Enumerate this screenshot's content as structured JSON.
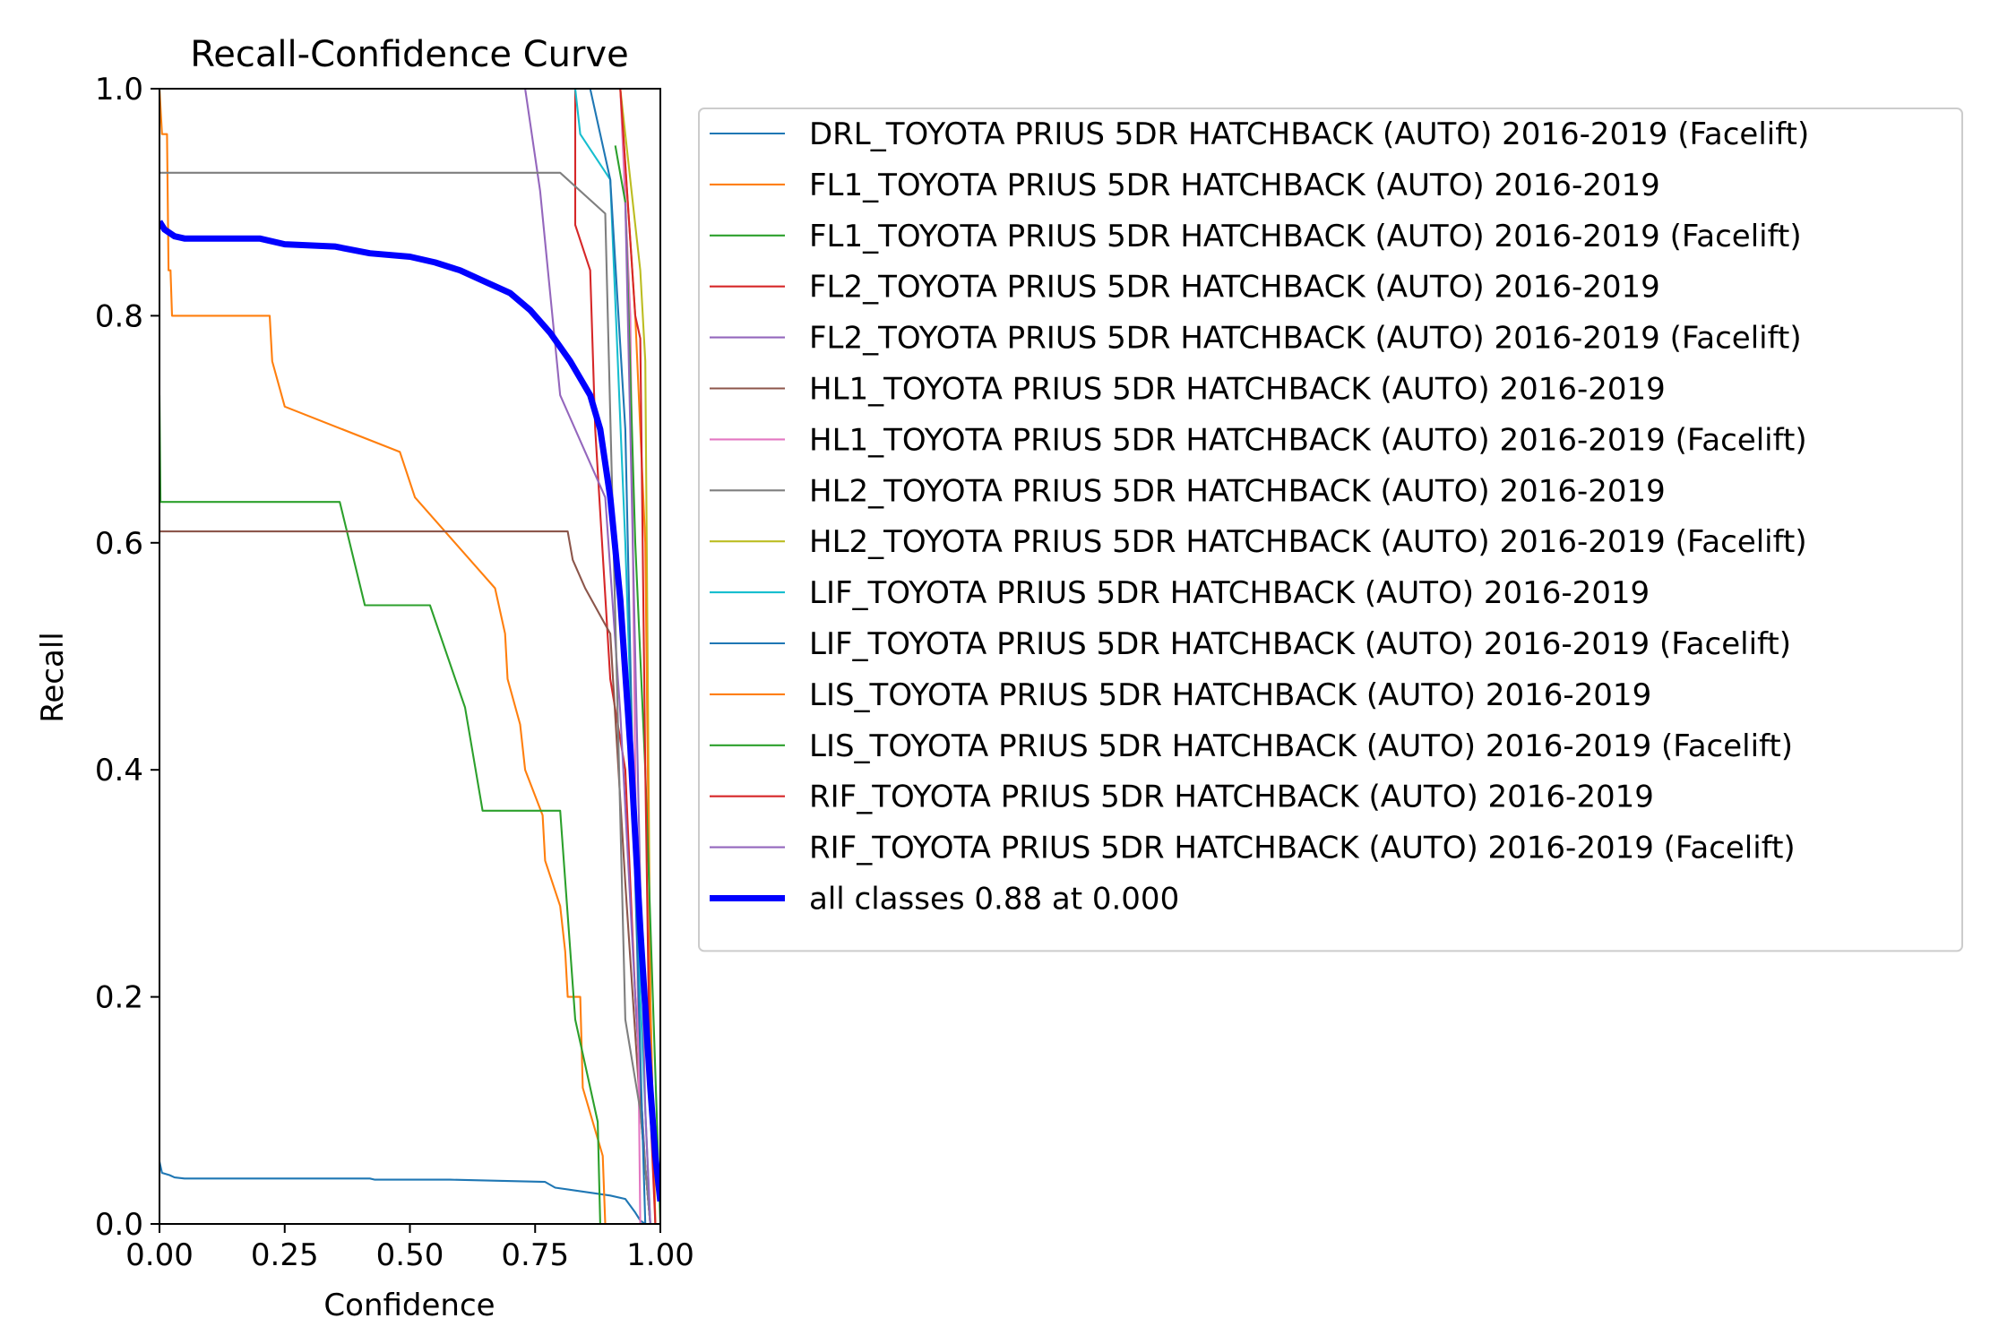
{
  "chart_data": {
    "type": "line",
    "title": "Recall-Confidence Curve",
    "xlabel": "Confidence",
    "ylabel": "Recall",
    "xlim": [
      0,
      1
    ],
    "ylim": [
      0,
      1
    ],
    "xticks": [
      "0.00",
      "0.25",
      "0.50",
      "0.75",
      "1.00"
    ],
    "yticks": [
      "0.0",
      "0.2",
      "0.4",
      "0.6",
      "0.8",
      "1.0"
    ],
    "grid": false,
    "legend_position": "outside-right",
    "series": [
      {
        "name": "DRL_TOYOTA PRIUS 5DR HATCHBACK (AUTO) 2016-2019 (Facelift)",
        "color": "#1f77b4",
        "width": 1.5,
        "points": [
          [
            0.0,
            0.055
          ],
          [
            0.005,
            0.045
          ],
          [
            0.02,
            0.043
          ],
          [
            0.03,
            0.041
          ],
          [
            0.05,
            0.04
          ],
          [
            0.2,
            0.04
          ],
          [
            0.42,
            0.04
          ],
          [
            0.43,
            0.039
          ],
          [
            0.58,
            0.039
          ],
          [
            0.77,
            0.037
          ],
          [
            0.79,
            0.032
          ],
          [
            0.9,
            0.025
          ],
          [
            0.93,
            0.022
          ],
          [
            0.95,
            0.01
          ],
          [
            0.96,
            0.003
          ],
          [
            0.97,
            0.0
          ]
        ]
      },
      {
        "name": "FL1_TOYOTA PRIUS 5DR HATCHBACK (AUTO) 2016-2019",
        "color": "#ff7f0e",
        "width": 1.5,
        "points": [
          [
            0.0,
            1.0
          ],
          [
            0.005,
            0.96
          ],
          [
            0.015,
            0.96
          ],
          [
            0.018,
            0.84
          ],
          [
            0.022,
            0.84
          ],
          [
            0.025,
            0.8
          ],
          [
            0.22,
            0.8
          ],
          [
            0.225,
            0.76
          ],
          [
            0.25,
            0.72
          ],
          [
            0.48,
            0.68
          ],
          [
            0.51,
            0.64
          ],
          [
            0.59,
            0.6
          ],
          [
            0.67,
            0.56
          ],
          [
            0.69,
            0.52
          ],
          [
            0.695,
            0.48
          ],
          [
            0.72,
            0.44
          ],
          [
            0.73,
            0.4
          ],
          [
            0.765,
            0.36
          ],
          [
            0.77,
            0.32
          ],
          [
            0.8,
            0.28
          ],
          [
            0.81,
            0.24
          ],
          [
            0.815,
            0.2
          ],
          [
            0.84,
            0.2
          ],
          [
            0.845,
            0.12
          ],
          [
            0.885,
            0.06
          ],
          [
            0.89,
            0.0
          ]
        ]
      },
      {
        "name": "FL1_TOYOTA PRIUS 5DR HATCHBACK (AUTO) 2016-2019 (Facelift)",
        "color": "#2ca02c",
        "width": 1.5,
        "points": [
          [
            0.0,
            0.73
          ],
          [
            0.002,
            0.636
          ],
          [
            0.36,
            0.636
          ],
          [
            0.41,
            0.545
          ],
          [
            0.54,
            0.545
          ],
          [
            0.61,
            0.455
          ],
          [
            0.645,
            0.364
          ],
          [
            0.8,
            0.364
          ],
          [
            0.83,
            0.18
          ],
          [
            0.875,
            0.09
          ],
          [
            0.88,
            0.0
          ]
        ]
      },
      {
        "name": "FL2_TOYOTA PRIUS 5DR HATCHBACK (AUTO) 2016-2019",
        "color": "#d62728",
        "width": 1.5,
        "points": [
          [
            0.83,
            1.0
          ],
          [
            0.83,
            0.88
          ],
          [
            0.86,
            0.84
          ],
          [
            0.87,
            0.7
          ],
          [
            0.9,
            0.48
          ],
          [
            0.93,
            0.4
          ],
          [
            0.95,
            0.2
          ],
          [
            0.97,
            0.05
          ],
          [
            0.98,
            0.0
          ]
        ]
      },
      {
        "name": "FL2_TOYOTA PRIUS 5DR HATCHBACK (AUTO) 2016-2019 (Facelift)",
        "color": "#9467bd",
        "width": 1.5,
        "points": [
          [
            0.73,
            1.0
          ],
          [
            0.76,
            0.91
          ],
          [
            0.8,
            0.73
          ],
          [
            0.89,
            0.64
          ],
          [
            0.92,
            0.45
          ],
          [
            0.95,
            0.2
          ],
          [
            0.97,
            0.05
          ],
          [
            0.98,
            0.0
          ]
        ]
      },
      {
        "name": "HL1_TOYOTA PRIUS 5DR HATCHBACK (AUTO) 2016-2019",
        "color": "#8c564b",
        "width": 1.5,
        "points": [
          [
            0.0,
            0.61
          ],
          [
            0.815,
            0.61
          ],
          [
            0.825,
            0.585
          ],
          [
            0.85,
            0.56
          ],
          [
            0.9,
            0.52
          ],
          [
            0.93,
            0.3
          ],
          [
            0.96,
            0.1
          ],
          [
            0.98,
            0.0
          ]
        ]
      },
      {
        "name": "HL1_TOYOTA PRIUS 5DR HATCHBACK (AUTO) 2016-2019 (Facelift)",
        "color": "#e377c2",
        "width": 1.5,
        "points": [
          [
            0.92,
            1.0
          ],
          [
            0.94,
            0.8
          ],
          [
            0.95,
            0.4
          ],
          [
            0.96,
            0.0
          ]
        ]
      },
      {
        "name": "HL2_TOYOTA PRIUS 5DR HATCHBACK (AUTO) 2016-2019",
        "color": "#7f7f7f",
        "width": 1.5,
        "points": [
          [
            0.0,
            0.926
          ],
          [
            0.8,
            0.926
          ],
          [
            0.89,
            0.89
          ],
          [
            0.93,
            0.18
          ],
          [
            0.96,
            0.1
          ],
          [
            0.98,
            0.0
          ]
        ]
      },
      {
        "name": "HL2_TOYOTA PRIUS 5DR HATCHBACK (AUTO) 2016-2019 (Facelift)",
        "color": "#bcbd22",
        "width": 1.5,
        "points": [
          [
            0.92,
            1.0
          ],
          [
            0.95,
            0.88
          ],
          [
            0.96,
            0.84
          ],
          [
            0.97,
            0.76
          ],
          [
            0.98,
            0.2
          ],
          [
            0.99,
            0.0
          ]
        ]
      },
      {
        "name": "LIF_TOYOTA PRIUS 5DR HATCHBACK (AUTO) 2016-2019",
        "color": "#17becf",
        "width": 1.5,
        "points": [
          [
            0.83,
            1.0
          ],
          [
            0.84,
            0.96
          ],
          [
            0.9,
            0.92
          ],
          [
            0.93,
            0.6
          ],
          [
            0.96,
            0.2
          ],
          [
            0.98,
            0.0
          ]
        ]
      },
      {
        "name": "LIF_TOYOTA PRIUS 5DR HATCHBACK (AUTO) 2016-2019 (Facelift)",
        "color": "#1f77b4",
        "width": 1.5,
        "points": [
          [
            0.86,
            1.0
          ],
          [
            0.9,
            0.92
          ],
          [
            0.93,
            0.7
          ],
          [
            0.95,
            0.3
          ],
          [
            0.97,
            0.0
          ]
        ]
      },
      {
        "name": "LIS_TOYOTA PRIUS 5DR HATCHBACK (AUTO) 2016-2019",
        "color": "#ff7f0e",
        "width": 1.5,
        "points": [
          [
            0.92,
            1.0
          ],
          [
            0.95,
            0.8
          ],
          [
            0.97,
            0.6
          ],
          [
            0.98,
            0.2
          ],
          [
            0.99,
            0.0
          ]
        ]
      },
      {
        "name": "LIS_TOYOTA PRIUS 5DR HATCHBACK (AUTO) 2016-2019 (Facelift)",
        "color": "#2ca02c",
        "width": 1.5,
        "points": [
          [
            0.91,
            0.95
          ],
          [
            0.93,
            0.9
          ],
          [
            0.95,
            0.6
          ],
          [
            0.97,
            0.4
          ],
          [
            0.985,
            0.2
          ],
          [
            1.0,
            0.0
          ]
        ]
      },
      {
        "name": "RIF_TOYOTA PRIUS 5DR HATCHBACK (AUTO) 2016-2019",
        "color": "#d62728",
        "width": 1.5,
        "points": [
          [
            0.92,
            1.0
          ],
          [
            0.95,
            0.8
          ],
          [
            0.96,
            0.78
          ],
          [
            0.97,
            0.4
          ],
          [
            0.98,
            0.1
          ],
          [
            0.99,
            0.0
          ]
        ]
      },
      {
        "name": "RIF_TOYOTA PRIUS 5DR HATCHBACK (AUTO) 2016-2019 (Facelift)",
        "color": "#9467bd",
        "width": 1.5,
        "points": [
          [
            0.93,
            0.9
          ],
          [
            0.95,
            0.5
          ],
          [
            0.97,
            0.1
          ],
          [
            0.98,
            0.0
          ]
        ]
      },
      {
        "name": "all classes 0.88 at 0.000",
        "color": "#0000ff",
        "width": 5,
        "points": [
          [
            0.0,
            0.883
          ],
          [
            0.01,
            0.876
          ],
          [
            0.03,
            0.87
          ],
          [
            0.05,
            0.868
          ],
          [
            0.1,
            0.868
          ],
          [
            0.2,
            0.868
          ],
          [
            0.25,
            0.863
          ],
          [
            0.35,
            0.861
          ],
          [
            0.42,
            0.855
          ],
          [
            0.5,
            0.852
          ],
          [
            0.55,
            0.847
          ],
          [
            0.6,
            0.84
          ],
          [
            0.65,
            0.83
          ],
          [
            0.7,
            0.82
          ],
          [
            0.74,
            0.805
          ],
          [
            0.78,
            0.785
          ],
          [
            0.82,
            0.76
          ],
          [
            0.86,
            0.73
          ],
          [
            0.88,
            0.7
          ],
          [
            0.9,
            0.64
          ],
          [
            0.92,
            0.55
          ],
          [
            0.94,
            0.42
          ],
          [
            0.96,
            0.26
          ],
          [
            0.98,
            0.12
          ],
          [
            0.99,
            0.06
          ],
          [
            1.0,
            0.02
          ]
        ]
      }
    ]
  }
}
